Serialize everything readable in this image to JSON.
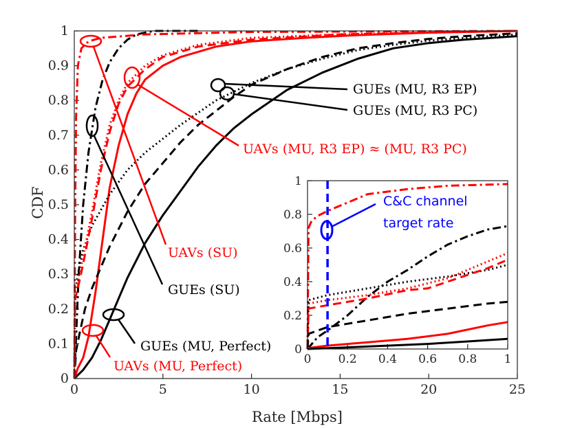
{
  "colors": {
    "ue": "#000000",
    "uav": "#ff0000",
    "target": "#0000ff",
    "axis": "#262626"
  },
  "chart_data": {
    "type": "line",
    "title": "",
    "xlabel": "Rate [Mbps]",
    "ylabel": "CDF",
    "xlim": [
      0,
      25
    ],
    "ylim": [
      0,
      1
    ],
    "x_ticks": [
      "0",
      "5",
      "10",
      "15",
      "20",
      "25"
    ],
    "y_ticks": [
      "0",
      "0.1",
      "0.2",
      "0.3",
      "0.4",
      "0.5",
      "0.6",
      "0.7",
      "0.8",
      "0.9",
      "1"
    ],
    "series": [
      {
        "name": "GUEs (SU)",
        "color": "black",
        "style": "dashdot",
        "points": [
          [
            0,
            0
          ],
          [
            0.1,
            0.12
          ],
          [
            0.25,
            0.3
          ],
          [
            0.5,
            0.5
          ],
          [
            0.8,
            0.65
          ],
          [
            1.2,
            0.78
          ],
          [
            1.6,
            0.86
          ],
          [
            2,
            0.91
          ],
          [
            2.5,
            0.95
          ],
          [
            3,
            0.975
          ],
          [
            3.5,
            0.99
          ],
          [
            4.5,
            1
          ],
          [
            7,
            1
          ]
        ]
      },
      {
        "name": "UAVs (SU)",
        "color": "red",
        "style": "dashdot",
        "points": [
          [
            0,
            0
          ],
          [
            0.05,
            0.5
          ],
          [
            0.1,
            0.75
          ],
          [
            0.2,
            0.9
          ],
          [
            0.4,
            0.95
          ],
          [
            0.8,
            0.97
          ],
          [
            1.5,
            0.98
          ],
          [
            4,
            0.99
          ],
          [
            10,
            0.997
          ],
          [
            25,
            1
          ]
        ]
      },
      {
        "name": "GUEs (MU, Perfect)",
        "color": "black",
        "style": "solid",
        "points": [
          [
            0,
            0
          ],
          [
            0.5,
            0.025
          ],
          [
            1,
            0.06
          ],
          [
            1.5,
            0.11
          ],
          [
            2,
            0.17
          ],
          [
            2.5,
            0.23
          ],
          [
            3,
            0.29
          ],
          [
            4,
            0.39
          ],
          [
            5,
            0.47
          ],
          [
            6,
            0.54
          ],
          [
            7,
            0.61
          ],
          [
            8,
            0.67
          ],
          [
            9,
            0.72
          ],
          [
            10,
            0.76
          ],
          [
            12,
            0.83
          ],
          [
            14,
            0.88
          ],
          [
            16,
            0.92
          ],
          [
            18,
            0.95
          ],
          [
            20,
            0.965
          ],
          [
            22,
            0.975
          ],
          [
            25,
            0.985
          ]
        ]
      },
      {
        "name": "UAVs (MU, Perfect)",
        "color": "red",
        "style": "solid",
        "points": [
          [
            0,
            0
          ],
          [
            0.2,
            0.03
          ],
          [
            0.5,
            0.06
          ],
          [
            0.8,
            0.12
          ],
          [
            1.2,
            0.25
          ],
          [
            1.6,
            0.4
          ],
          [
            2,
            0.55
          ],
          [
            2.5,
            0.67
          ],
          [
            3,
            0.76
          ],
          [
            3.5,
            0.82
          ],
          [
            4,
            0.86
          ],
          [
            5,
            0.9
          ],
          [
            6,
            0.925
          ],
          [
            8,
            0.955
          ],
          [
            10,
            0.97
          ],
          [
            13,
            0.98
          ],
          [
            16,
            0.988
          ],
          [
            20,
            0.995
          ],
          [
            25,
            1
          ]
        ]
      },
      {
        "name": "GUEs (MU, R3 EP)",
        "color": "black",
        "style": "dotted",
        "points": [
          [
            0,
            0
          ],
          [
            0.05,
            0.25
          ],
          [
            0.2,
            0.3
          ],
          [
            0.5,
            0.37
          ],
          [
            1,
            0.44
          ],
          [
            2,
            0.53
          ],
          [
            3,
            0.6
          ],
          [
            4,
            0.65
          ],
          [
            6,
            0.73
          ],
          [
            8,
            0.8
          ],
          [
            10,
            0.85
          ],
          [
            12,
            0.89
          ],
          [
            14,
            0.92
          ],
          [
            16,
            0.945
          ],
          [
            18,
            0.96
          ],
          [
            20,
            0.972
          ],
          [
            22,
            0.98
          ],
          [
            25,
            0.99
          ]
        ]
      },
      {
        "name": "GUEs (MU, R3 PC)",
        "color": "black",
        "style": "dashed",
        "points": [
          [
            0,
            0
          ],
          [
            0.1,
            0.08
          ],
          [
            0.3,
            0.13
          ],
          [
            0.6,
            0.2
          ],
          [
            1,
            0.26
          ],
          [
            2,
            0.38
          ],
          [
            3,
            0.48
          ],
          [
            4,
            0.56
          ],
          [
            5,
            0.62
          ],
          [
            6,
            0.68
          ],
          [
            7,
            0.73
          ],
          [
            8,
            0.77
          ],
          [
            9,
            0.81
          ],
          [
            10,
            0.845
          ],
          [
            12,
            0.89
          ],
          [
            14,
            0.925
          ],
          [
            16,
            0.95
          ],
          [
            18,
            0.965
          ],
          [
            20,
            0.977
          ],
          [
            22,
            0.985
          ],
          [
            25,
            0.993
          ]
        ]
      },
      {
        "name": "UAVs (MU, R3 EP)",
        "color": "red",
        "style": "dotted",
        "points": [
          [
            0,
            0
          ],
          [
            0.05,
            0.25
          ],
          [
            0.2,
            0.28
          ],
          [
            0.5,
            0.35
          ],
          [
            1,
            0.48
          ],
          [
            1.5,
            0.62
          ],
          [
            2,
            0.73
          ],
          [
            2.5,
            0.8
          ],
          [
            3,
            0.85
          ],
          [
            4,
            0.9
          ],
          [
            5,
            0.93
          ],
          [
            7,
            0.96
          ],
          [
            10,
            0.98
          ],
          [
            15,
            0.99
          ],
          [
            25,
            1
          ]
        ]
      },
      {
        "name": "UAVs (MU, R3 PC)",
        "color": "red",
        "style": "dashed",
        "points": [
          [
            0,
            0
          ],
          [
            0.05,
            0.23
          ],
          [
            0.2,
            0.26
          ],
          [
            0.5,
            0.33
          ],
          [
            1,
            0.46
          ],
          [
            1.5,
            0.6
          ],
          [
            2,
            0.71
          ],
          [
            2.5,
            0.79
          ],
          [
            3,
            0.84
          ],
          [
            4,
            0.89
          ],
          [
            5,
            0.925
          ],
          [
            7,
            0.955
          ],
          [
            10,
            0.975
          ],
          [
            15,
            0.99
          ],
          [
            25,
            1
          ]
        ]
      }
    ],
    "inset": {
      "xlim": [
        0,
        1
      ],
      "ylim": [
        0,
        1
      ],
      "x_ticks": [
        "0",
        "0.2",
        "0.4",
        "0.6",
        "0.8",
        "1"
      ],
      "y_ticks": [
        "0",
        "0.2",
        "0.4",
        "0.6",
        "0.8",
        "1"
      ],
      "target_rate": 0.1,
      "series": [
        {
          "name": "UAVs (SU)",
          "color": "red",
          "style": "dashdot",
          "points": [
            [
              0,
              0
            ],
            [
              0.005,
              0.72
            ],
            [
              0.02,
              0.76
            ],
            [
              0.05,
              0.79
            ],
            [
              0.1,
              0.82
            ],
            [
              0.2,
              0.87
            ],
            [
              0.3,
              0.92
            ],
            [
              0.5,
              0.95
            ],
            [
              0.7,
              0.97
            ],
            [
              1,
              0.98
            ]
          ]
        },
        {
          "name": "GUEs (SU)",
          "color": "black",
          "style": "dashdot",
          "points": [
            [
              0,
              0
            ],
            [
              0.05,
              0.07
            ],
            [
              0.1,
              0.11
            ],
            [
              0.2,
              0.2
            ],
            [
              0.3,
              0.31
            ],
            [
              0.4,
              0.4
            ],
            [
              0.5,
              0.47
            ],
            [
              0.6,
              0.55
            ],
            [
              0.7,
              0.62
            ],
            [
              0.8,
              0.67
            ],
            [
              0.9,
              0.71
            ],
            [
              1,
              0.73
            ]
          ]
        },
        {
          "name": "UAVs (MU, R3 EP)",
          "color": "red",
          "style": "dotted",
          "points": [
            [
              0,
              0
            ],
            [
              0.005,
              0.27
            ],
            [
              0.1,
              0.29
            ],
            [
              0.3,
              0.32
            ],
            [
              0.5,
              0.36
            ],
            [
              0.7,
              0.42
            ],
            [
              0.9,
              0.52
            ],
            [
              1,
              0.57
            ]
          ]
        },
        {
          "name": "GUEs (MU, R3 EP)",
          "color": "black",
          "style": "dotted",
          "points": [
            [
              0,
              0
            ],
            [
              0.005,
              0.29
            ],
            [
              0.1,
              0.32
            ],
            [
              0.3,
              0.36
            ],
            [
              0.5,
              0.4
            ],
            [
              0.7,
              0.43
            ],
            [
              0.9,
              0.47
            ],
            [
              1,
              0.5
            ]
          ]
        },
        {
          "name": "UAVs (MU, R3 PC)",
          "color": "red",
          "style": "dashed",
          "points": [
            [
              0,
              0
            ],
            [
              0.005,
              0.24
            ],
            [
              0.1,
              0.26
            ],
            [
              0.3,
              0.3
            ],
            [
              0.5,
              0.35
            ],
            [
              0.6,
              0.36
            ],
            [
              0.7,
              0.4
            ],
            [
              0.9,
              0.48
            ],
            [
              1,
              0.53
            ]
          ]
        },
        {
          "name": "GUEs (MU, R3 PC)",
          "color": "black",
          "style": "dashed",
          "points": [
            [
              0,
              0
            ],
            [
              0.005,
              0.09
            ],
            [
              0.1,
              0.13
            ],
            [
              0.3,
              0.17
            ],
            [
              0.5,
              0.21
            ],
            [
              0.7,
              0.24
            ],
            [
              0.9,
              0.27
            ],
            [
              1,
              0.28
            ]
          ]
        },
        {
          "name": "UAVs (MU, Perfect)",
          "color": "red",
          "style": "solid",
          "points": [
            [
              0,
              0.005
            ],
            [
              0.1,
              0.02
            ],
            [
              0.3,
              0.04
            ],
            [
              0.5,
              0.06
            ],
            [
              0.7,
              0.09
            ],
            [
              0.9,
              0.14
            ],
            [
              1,
              0.16
            ]
          ]
        },
        {
          "name": "GUEs (MU, Perfect)",
          "color": "black",
          "style": "solid",
          "points": [
            [
              0,
              0
            ],
            [
              0.2,
              0.01
            ],
            [
              0.4,
              0.02
            ],
            [
              0.6,
              0.03
            ],
            [
              0.8,
              0.045
            ],
            [
              1,
              0.06
            ]
          ]
        }
      ]
    },
    "annotations": {
      "gue_r3ep": "GUEs (MU, R3 EP)",
      "gue_r3pc": "GUEs (MU, R3 PC)",
      "uav_r3": "UAVs (MU, R3 EP) ≈ (MU, R3 PC)",
      "uav_su": "UAVs (SU)",
      "gue_su": "GUEs (SU)",
      "gue_perfect": "GUEs (MU, Perfect)",
      "uav_perfect": "UAVs (MU, Perfect)",
      "cc_line1": "C&C channel",
      "cc_line2": "target rate"
    }
  }
}
